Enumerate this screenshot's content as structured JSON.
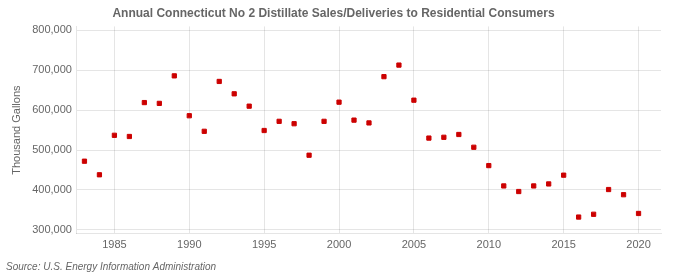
{
  "chart_data": {
    "type": "scatter",
    "title": "Annual Connecticut No 2 Distillate Sales/Deliveries to Residential Consumers",
    "ylabel": "Thousand Gallons",
    "annotations": [
      "Source: U.S. Energy Information Administration"
    ],
    "x": [
      1983,
      1984,
      1985,
      1986,
      1987,
      1988,
      1989,
      1990,
      1991,
      1992,
      1993,
      1994,
      1995,
      1996,
      1997,
      1998,
      1999,
      2000,
      2001,
      2002,
      2003,
      2004,
      2005,
      2006,
      2007,
      2008,
      2009,
      2010,
      2011,
      2012,
      2013,
      2014,
      2015,
      2016,
      2017,
      2018,
      2019,
      2020
    ],
    "values": [
      472000,
      438000,
      537000,
      534000,
      619000,
      617000,
      686000,
      586000,
      547000,
      672000,
      641000,
      610000,
      549000,
      572000,
      566000,
      487000,
      572000,
      620000,
      575000,
      568000,
      684000,
      713000,
      625000,
      530000,
      532000,
      539000,
      507000,
      461000,
      410000,
      396000,
      410000,
      415000,
      437000,
      332000,
      339000,
      401000,
      388000,
      341000
    ],
    "color": "#cc0000",
    "marker": "square",
    "xlim": [
      1982.5,
      2021.5
    ],
    "ylim": [
      290000,
      810000
    ],
    "xticks": [
      1985,
      1990,
      1995,
      2000,
      2005,
      2010,
      2015,
      2020
    ],
    "yticks": [
      {
        "value": 300000,
        "label": "300,000"
      },
      {
        "value": 400000,
        "label": "400,000"
      },
      {
        "value": 500000,
        "label": "500,000"
      },
      {
        "value": 600000,
        "label": "600,000"
      },
      {
        "value": 700000,
        "label": "700,000"
      },
      {
        "value": 800000,
        "label": "800,000"
      }
    ],
    "grid": true
  }
}
